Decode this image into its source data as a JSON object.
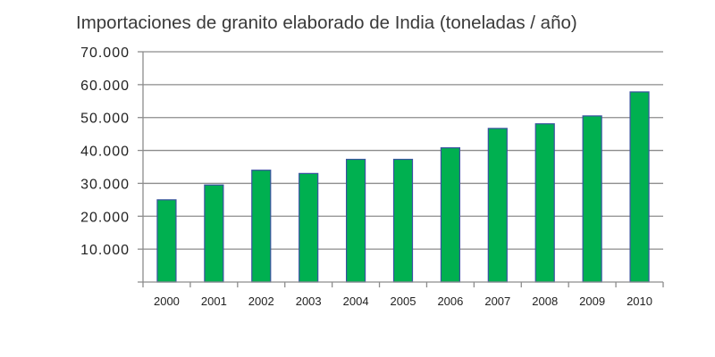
{
  "chart_data": {
    "type": "bar",
    "title": "Importaciones de granito elaborado de India (toneladas / año)",
    "xlabel": "",
    "ylabel": "",
    "categories": [
      "2000",
      "2001",
      "2002",
      "2003",
      "2004",
      "2005",
      "2006",
      "2007",
      "2008",
      "2009",
      "2010"
    ],
    "values": [
      25000,
      29500,
      34000,
      33000,
      37300,
      37300,
      40800,
      46700,
      48100,
      50500,
      57800
    ],
    "ylim": [
      0,
      70000
    ],
    "yticks": [
      10000,
      20000,
      30000,
      40000,
      50000,
      60000,
      70000
    ],
    "ytick_labels": [
      "10.000",
      "20.000",
      "30.000",
      "40.000",
      "50.000",
      "60.000",
      "70.000"
    ],
    "grid": true,
    "legend": "none",
    "colors": {
      "bar_fill": "#00b050",
      "bar_edge": "#3a52a0",
      "grid": "#8c8c8c",
      "axis": "#8c8c8c"
    }
  }
}
